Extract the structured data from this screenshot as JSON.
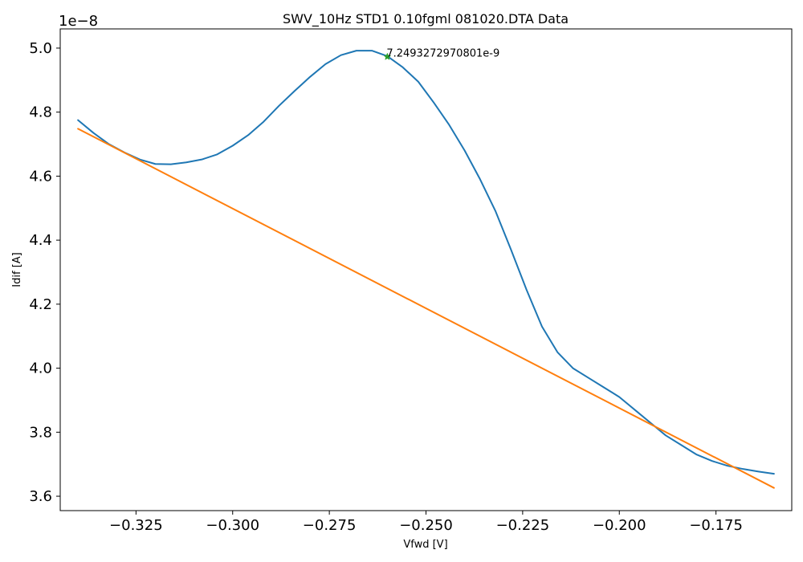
{
  "chart_data": {
    "type": "line",
    "title": "SWV_10Hz STD1 0.10fgml 081020.DTA Data",
    "xlabel": "Vfwd [V]",
    "ylabel": "Idif [A]",
    "y_offset_label": "1e−8",
    "xlim": [
      -0.3446,
      -0.1554
    ],
    "ylim": [
      3.555,
      5.06
    ],
    "y_scale_factor": 1e-08,
    "grid": false,
    "x_ticks": [
      -0.325,
      -0.3,
      -0.275,
      -0.25,
      -0.225,
      -0.2,
      -0.175
    ],
    "x_tick_labels": [
      "−0.325",
      "−0.300",
      "−0.275",
      "−0.250",
      "−0.225",
      "−0.200",
      "−0.175"
    ],
    "y_ticks": [
      3.6,
      3.8,
      4.0,
      4.2,
      4.4,
      4.6,
      4.8,
      5.0
    ],
    "y_tick_labels": [
      "3.6",
      "3.8",
      "4.0",
      "4.2",
      "4.4",
      "4.6",
      "4.8",
      "5.0"
    ],
    "colors": {
      "series1": "#1f77b4",
      "baseline": "#ff7f0e",
      "marker": "#2ca02c"
    },
    "series": [
      {
        "x": [
          -0.34,
          -0.336,
          -0.332,
          -0.328,
          -0.324,
          -0.32,
          -0.316,
          -0.312,
          -0.308,
          -0.304,
          -0.3,
          -0.296,
          -0.292,
          -0.288,
          -0.284,
          -0.28,
          -0.276,
          -0.272,
          -0.268,
          -0.264,
          -0.26,
          -0.256,
          -0.252,
          -0.248,
          -0.244,
          -0.24,
          -0.236,
          -0.232,
          -0.228,
          -0.224,
          -0.22,
          -0.216,
          -0.212,
          -0.208,
          -0.204,
          -0.2,
          -0.196,
          -0.192,
          -0.188,
          -0.184,
          -0.18,
          -0.176,
          -0.172,
          -0.168,
          -0.164,
          -0.16
        ],
        "values": [
          4.775,
          4.735,
          4.7,
          4.674,
          4.652,
          4.638,
          4.637,
          4.643,
          4.652,
          4.668,
          4.695,
          4.728,
          4.77,
          4.82,
          4.866,
          4.91,
          4.95,
          4.978,
          4.992,
          4.992,
          4.975,
          4.94,
          4.895,
          4.83,
          4.76,
          4.68,
          4.59,
          4.49,
          4.37,
          4.245,
          4.13,
          4.05,
          4.0,
          3.97,
          3.94,
          3.91,
          3.87,
          3.83,
          3.79,
          3.76,
          3.73,
          3.71,
          3.695,
          3.685,
          3.677,
          3.67
        ]
      },
      {
        "x": [
          -0.34,
          -0.16
        ],
        "values": [
          4.748,
          3.626
        ]
      }
    ],
    "annotation": {
      "x": -0.26,
      "y": 4.973,
      "text": "7.2493272970801e-9"
    }
  }
}
